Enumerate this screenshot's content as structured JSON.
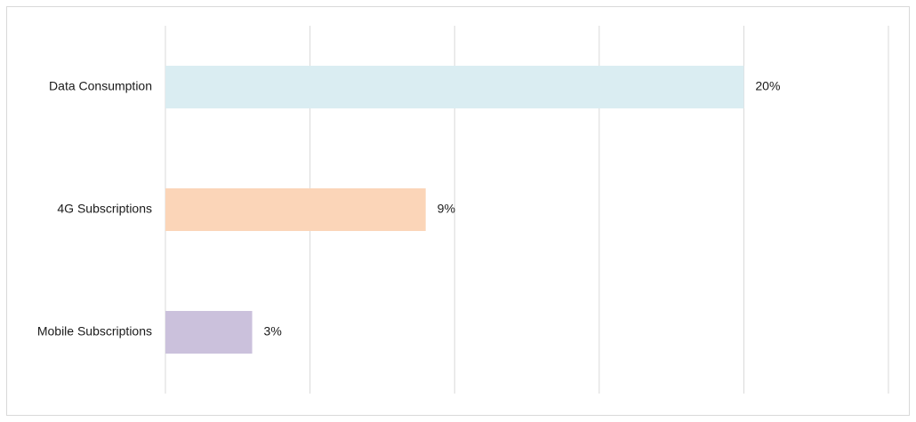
{
  "chart_data": {
    "type": "hbar",
    "categories": [
      "Data Consumption",
      "4G Subscriptions",
      "Mobile Subscriptions"
    ],
    "values": [
      20,
      9,
      3
    ],
    "value_labels": [
      "20%",
      "9%",
      "3%"
    ],
    "colors": [
      "#daedf2",
      "#fbd5b8",
      "#cbc1dc"
    ],
    "xlim": [
      0,
      25
    ],
    "xticks": [
      0,
      5,
      10,
      15,
      20,
      25
    ],
    "grid": true
  }
}
